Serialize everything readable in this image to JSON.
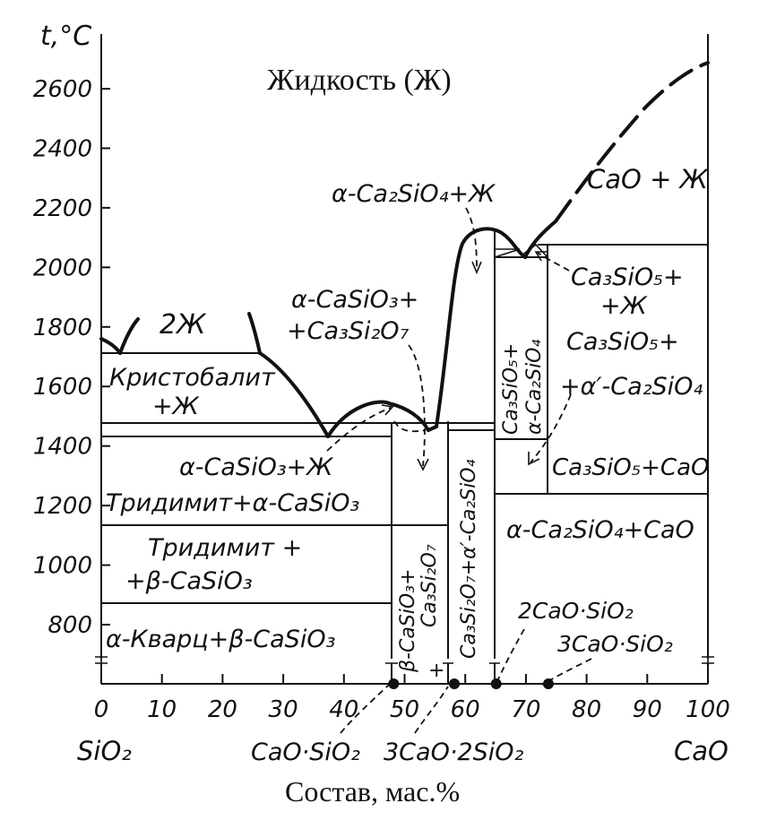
{
  "chart_data": {
    "type": "phase-diagram",
    "ylabel": "t,°C",
    "xlabel": "Состав, мас.%",
    "x_ticks": [
      "0",
      "10",
      "20",
      "30",
      "40",
      "50",
      "60",
      "70",
      "80",
      "90",
      "100"
    ],
    "y_ticks": [
      "800",
      "1000",
      "1200",
      "1400",
      "1600",
      "1800",
      "2000",
      "2200",
      "2400",
      "2600"
    ],
    "xlim": [
      0,
      100
    ],
    "ylim": [
      620,
      2750
    ],
    "end_members": {
      "left": "SiO₂",
      "right": "CaO"
    },
    "compounds": [
      {
        "label": "CaO·SiO₂",
        "x": 48.2
      },
      {
        "label": "3CaO·2SiO₂",
        "x": 58.2
      },
      {
        "label": "2CaO·SiO₂",
        "x": 65.1
      },
      {
        "label": "3CaO·SiO₂",
        "x": 73.7
      }
    ],
    "invariant_temperatures": [
      1698,
      1460,
      1436,
      1410,
      1250,
      2065,
      1125,
      870
    ],
    "regions": {
      "liquid": "Жидкость (Ж)",
      "two_liquids": "2Ж",
      "cristobalite_liquid_1": "Кристобалит",
      "cristobalite_liquid_2": "+Ж",
      "a_wollastonite_liquid": "α-CaSiO₃+Ж",
      "tridymite_a": "Тридимит+α-CaSiO₃",
      "tridymite_b_1": "Тридимит +",
      "tridymite_b_2": "+β-CaSiO₃",
      "quartz_b": "α-Кварц+β-CaSiO₃",
      "a_c2s_liquid": "α-Ca₂SiO₄+Ж",
      "a_cs_c3s2_1": "α-CaSiO₃+",
      "a_cs_c3s2_2": "+Ca₃Si₂O₇",
      "cao_liquid": "CaO + Ж",
      "c3s_liquid_1": "Ca₃SiO₅+",
      "c3s_liquid_2": "+Ж",
      "c3s_c2s_1": "Ca₃SiO₅+",
      "c3s_c2s_2": "+α′-Ca₂SiO₄",
      "c3s_cao": "Ca₃SiO₅+CaO",
      "c2s_cao": "α-Ca₂SiO₄+CaO",
      "b_cs_c3s2": "β-CaSiO₃+",
      "b_cs_c3s2_b": "Ca₃Si₂O₇",
      "c3s2_c2s": "Ca₃Si₂O₇+α′-Ca₂SiO₄",
      "c3s_a_c2s_1": "Ca₃SiO₅+",
      "c3s_a_c2s_2": "α-Ca₂SiO₄",
      "plus_sign": "+"
    },
    "compound_labels": {
      "cs": "CaO·SiO₂",
      "c3s2": "3CaO·2SiO₂",
      "c2s": "2CaO·SiO₂",
      "c3s": "3CaO·SiO₂"
    }
  }
}
